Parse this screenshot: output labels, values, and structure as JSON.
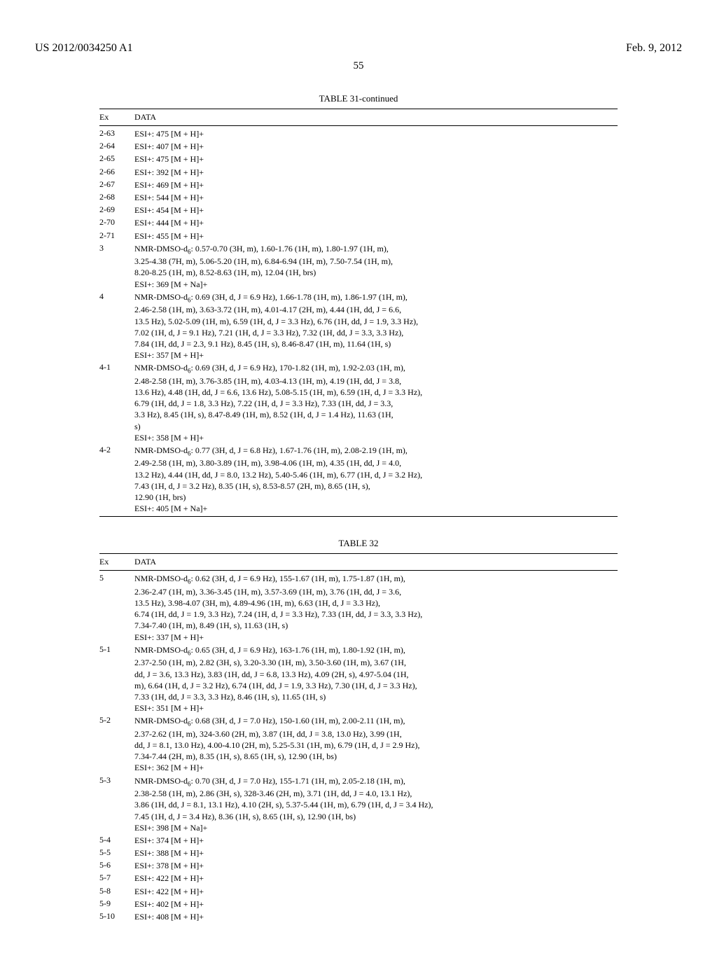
{
  "header": {
    "left": "US 2012/0034250 A1",
    "right": "Feb. 9, 2012"
  },
  "page_number": "55",
  "table31": {
    "title": "TABLE 31-continued",
    "col_ex": "Ex",
    "col_data": "DATA",
    "rows": [
      {
        "ex": "2-63",
        "data": "ESI+: 475 [M + H]+"
      },
      {
        "ex": "2-64",
        "data": "ESI+: 407 [M + H]+"
      },
      {
        "ex": "2-65",
        "data": "ESI+: 475 [M + H]+"
      },
      {
        "ex": "2-66",
        "data": "ESI+: 392 [M + H]+"
      },
      {
        "ex": "2-67",
        "data": "ESI+: 469 [M + H]+"
      },
      {
        "ex": "2-68",
        "data": "ESI+: 544 [M + H]+"
      },
      {
        "ex": "2-69",
        "data": "ESI+: 454 [M + H]+"
      },
      {
        "ex": "2-70",
        "data": "ESI+: 444 [M + H]+"
      },
      {
        "ex": "2-71",
        "data": "ESI+: 455 [M + H]+"
      },
      {
        "ex": "3",
        "data": "NMR-DMSO-d₆: 0.57-0.70 (3H, m), 1.60-1.76 (1H, m), 1.80-1.97 (1H, m),\n3.25-4.38 (7H, m), 5.06-5.20 (1H, m), 6.84-6.94 (1H, m), 7.50-7.54 (1H, m),\n8.20-8.25 (1H, m), 8.52-8.63 (1H, m), 12.04 (1H, brs)\nESI+: 369 [M + Na]+"
      },
      {
        "ex": "4",
        "data": "NMR-DMSO-d₆: 0.69 (3H, d, J = 6.9 Hz), 1.66-1.78 (1H, m), 1.86-1.97 (1H, m),\n2.46-2.58 (1H, m), 3.63-3.72 (1H, m), 4.01-4.17 (2H, m), 4.44 (1H, dd, J = 6.6,\n13.5 Hz), 5.02-5.09 (1H, m), 6.59 (1H, d, J = 3.3 Hz), 6.76 (1H, dd, J = 1.9, 3.3 Hz),\n7.02 (1H, d, J = 9.1 Hz), 7.21 (1H, d, J = 3.3 Hz), 7.32 (1H, dd, J = 3.3, 3.3 Hz),\n7.84 (1H, dd, J = 2.3, 9.1 Hz), 8.45 (1H, s), 8.46-8.47 (1H, m), 11.64 (1H, s)\nESI+: 357 [M + H]+"
      },
      {
        "ex": "4-1",
        "data": "NMR-DMSO-d₆: 0.69 (3H, d, J = 6.9 Hz), 170-1.82 (1H, m), 1.92-2.03 (1H, m),\n2.48-2.58 (1H, m), 3.76-3.85 (1H, m), 4.03-4.13 (1H, m), 4.19 (1H, dd, J = 3.8,\n13.6 Hz), 4.48 (1H, dd, J = 6.6, 13.6 Hz), 5.08-5.15 (1H, m), 6.59 (1H, d, J = 3.3 Hz),\n6.79 (1H, dd, J = 1.8, 3.3 Hz), 7.22 (1H, d, J = 3.3 Hz), 7.33 (1H, dd, J = 3.3,\n3.3 Hz), 8.45 (1H, s), 8.47-8.49 (1H, m), 8.52 (1H, d, J = 1.4 Hz), 11.63 (1H,\ns)\nESI+: 358 [M + H]+"
      },
      {
        "ex": "4-2",
        "data": "NMR-DMSO-d₆: 0.77 (3H, d, J = 6.8 Hz), 1.67-1.76 (1H, m), 2.08-2.19 (1H, m),\n2.49-2.58 (1H, m), 3.80-3.89 (1H, m), 3.98-4.06 (1H, m), 4.35 (1H, dd, J = 4.0,\n13.2 Hz), 4.44 (1H, dd, J = 8.0, 13.2 Hz), 5.40-5.46 (1H, m), 6.77 (1H, d, J = 3.2 Hz),\n7.43 (1H, d, J = 3.2 Hz), 8.35 (1H, s), 8.53-8.57 (2H, m), 8.65 (1H, s),\n12.90 (1H, brs)\nESI+: 405 [M + Na]+"
      }
    ]
  },
  "table32": {
    "title": "TABLE 32",
    "col_ex": "Ex",
    "col_data": "DATA",
    "rows": [
      {
        "ex": "5",
        "data": "NMR-DMSO-d₆: 0.62 (3H, d, J = 6.9 Hz), 155-1.67 (1H, m), 1.75-1.87 (1H, m),\n2.36-2.47 (1H, m), 3.36-3.45 (1H, m), 3.57-3.69 (1H, m), 3.76 (1H, dd, J = 3.6,\n13.5 Hz), 3.98-4.07 (3H, m), 4.89-4.96 (1H, m), 6.63 (1H, d, J = 3.3 Hz),\n6.74 (1H, dd, J = 1.9, 3.3 Hz), 7.24 (1H, d, J = 3.3 Hz), 7.33 (1H, dd, J = 3.3, 3.3 Hz),\n7.34-7.40 (1H, m), 8.49 (1H, s), 11.63 (1H, s)\nESI+: 337 [M + H]+"
      },
      {
        "ex": "5-1",
        "data": "NMR-DMSO-d₆: 0.65 (3H, d, J = 6.9 Hz), 163-1.76 (1H, m), 1.80-1.92 (1H, m),\n2.37-2.50 (1H, m), 2.82 (3H, s), 3.20-3.30 (1H, m), 3.50-3.60 (1H, m), 3.67 (1H,\ndd, J = 3.6, 13.3 Hz), 3.83 (1H, dd, J = 6.8, 13.3 Hz), 4.09 (2H, s), 4.97-5.04 (1H,\nm), 6.64 (1H, d, J = 3.2 Hz), 6.74 (1H, dd, J = 1.9, 3.3 Hz), 7.30 (1H, d, J = 3.3 Hz),\n7.33 (1H, dd, J = 3.3, 3.3 Hz), 8.46 (1H, s), 11.65 (1H, s)\nESI+: 351 [M + H]+"
      },
      {
        "ex": "5-2",
        "data": "NMR-DMSO-d₆: 0.68 (3H, d, J = 7.0 Hz), 150-1.60 (1H, m), 2.00-2.11 (1H, m),\n2.37-2.62 (1H, m), 324-3.60 (2H, m), 3.87 (1H, dd, J = 3.8, 13.0 Hz), 3.99 (1H,\ndd, J = 8.1, 13.0 Hz), 4.00-4.10 (2H, m), 5.25-5.31 (1H, m), 6.79 (1H, d, J = 2.9 Hz),\n7.34-7.44 (2H, m), 8.35 (1H, s), 8.65 (1H, s), 12.90 (1H, bs)\nESI+: 362 [M + H]+"
      },
      {
        "ex": "5-3",
        "data": "NMR-DMSO-d₆: 0.70 (3H, d, J = 7.0 Hz), 155-1.71 (1H, m), 2.05-2.18 (1H, m),\n2.38-2.58 (1H, m), 2.86 (3H, s), 328-3.46 (2H, m), 3.71 (1H, dd, J = 4.0, 13.1 Hz),\n3.86 (1H, dd, J = 8.1, 13.1 Hz), 4.10 (2H, s), 5.37-5.44 (1H, m), 6.79 (1H, d, J = 3.4 Hz),\n7.45 (1H, d, J = 3.4 Hz), 8.36 (1H, s), 8.65 (1H, s), 12.90 (1H, bs)\nESI+: 398 [M + Na]+"
      },
      {
        "ex": "5-4",
        "data": "ESI+: 374 [M + H]+"
      },
      {
        "ex": "5-5",
        "data": "ESI+: 388 [M + H]+"
      },
      {
        "ex": "5-6",
        "data": "ESI+: 378 [M + H]+"
      },
      {
        "ex": "5-7",
        "data": "ESI+: 422 [M + H]+"
      },
      {
        "ex": "5-8",
        "data": "ESI+: 422 [M + H]+"
      },
      {
        "ex": "5-9",
        "data": "ESI+: 402 [M + H]+"
      },
      {
        "ex": "5-10",
        "data": "ESI+: 408 [M + H]+"
      }
    ]
  }
}
